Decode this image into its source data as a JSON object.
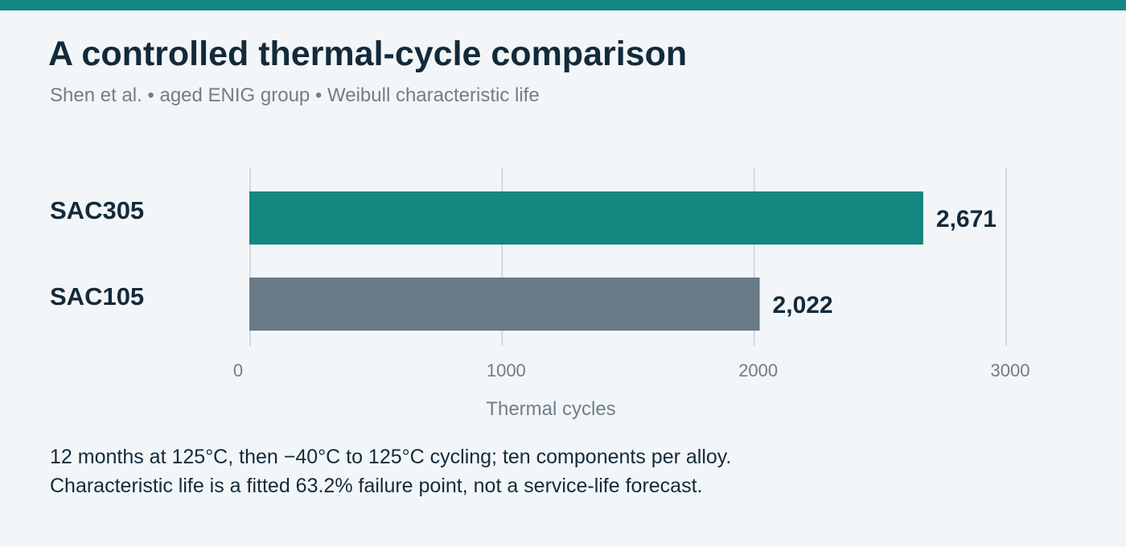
{
  "header": {
    "title": "A controlled thermal-cycle comparison",
    "subtitle": "Shen et al. • aged ENIG group • Weibull characteristic life"
  },
  "colors": {
    "accent": "#138780",
    "secondary": "#697a87",
    "background": "#f2f6f8",
    "text": "#152a3a",
    "muted": "#6f7e8a",
    "grid": "#d3d9dd"
  },
  "chart_data": {
    "type": "bar",
    "orientation": "horizontal",
    "categories": [
      "SAC305",
      "SAC105"
    ],
    "values": [
      2671,
      2022
    ],
    "value_labels": [
      "2,671",
      "2,022"
    ],
    "bar_colors": [
      "#138780",
      "#697a87"
    ],
    "title": "A controlled thermal-cycle comparison",
    "subtitle": "Shen et al. • aged ENIG group • Weibull characteristic life",
    "xlabel": "Thermal cycles",
    "ylabel": "",
    "xlim": [
      0,
      3000
    ],
    "x_ticks": [
      0,
      1000,
      2000,
      3000
    ],
    "x_tick_labels": [
      "0",
      "1000",
      "2000",
      "3000"
    ],
    "grid": true,
    "legend": "none"
  },
  "footnote": {
    "line1": "12 months at 125°C, then −40°C to 125°C cycling; ten components per alloy.",
    "line2": "Characteristic life is a fitted 63.2% failure point, not a service-life forecast."
  }
}
